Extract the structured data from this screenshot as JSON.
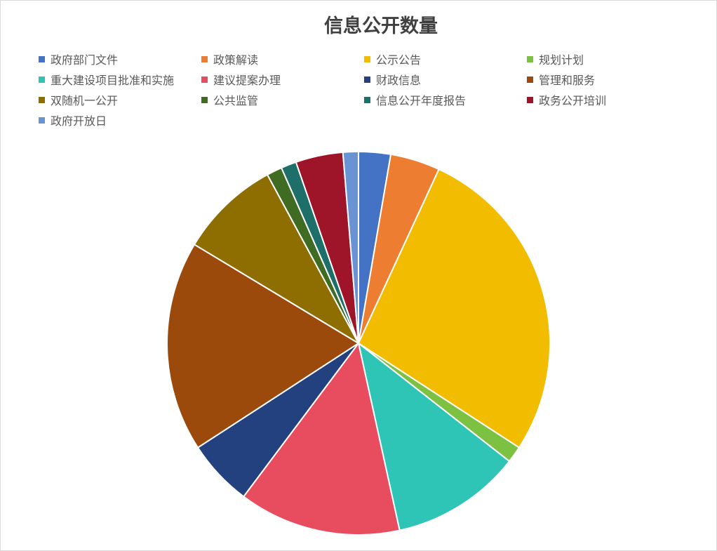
{
  "chart_data": {
    "type": "pie",
    "title": "信息公开数量",
    "legend_position": "top",
    "start_angle_deg": 0,
    "direction": "clockwise",
    "categories": [
      "政府部门文件",
      "政策解读",
      "公示公告",
      "规划计划",
      "重大建设项目批准和实施",
      "建议提案办理",
      "财政信息",
      "管理和服务",
      "双随机一公开",
      "公共监管",
      "信息公开年度报告",
      "政务公开培训",
      "政府开放日"
    ],
    "values": [
      2.7,
      4.2,
      27.3,
      1.4,
      11.0,
      13.7,
      5.6,
      17.8,
      8.5,
      1.3,
      1.3,
      4.0,
      1.3
    ],
    "colors": [
      "#4472C4",
      "#ED7D31",
      "#F2BC00",
      "#7DC142",
      "#2EC4B6",
      "#E84C5F",
      "#24417F",
      "#9C4A0C",
      "#8E6E00",
      "#3F6B22",
      "#1E6E6A",
      "#9E1428",
      "#6A93D4"
    ]
  }
}
